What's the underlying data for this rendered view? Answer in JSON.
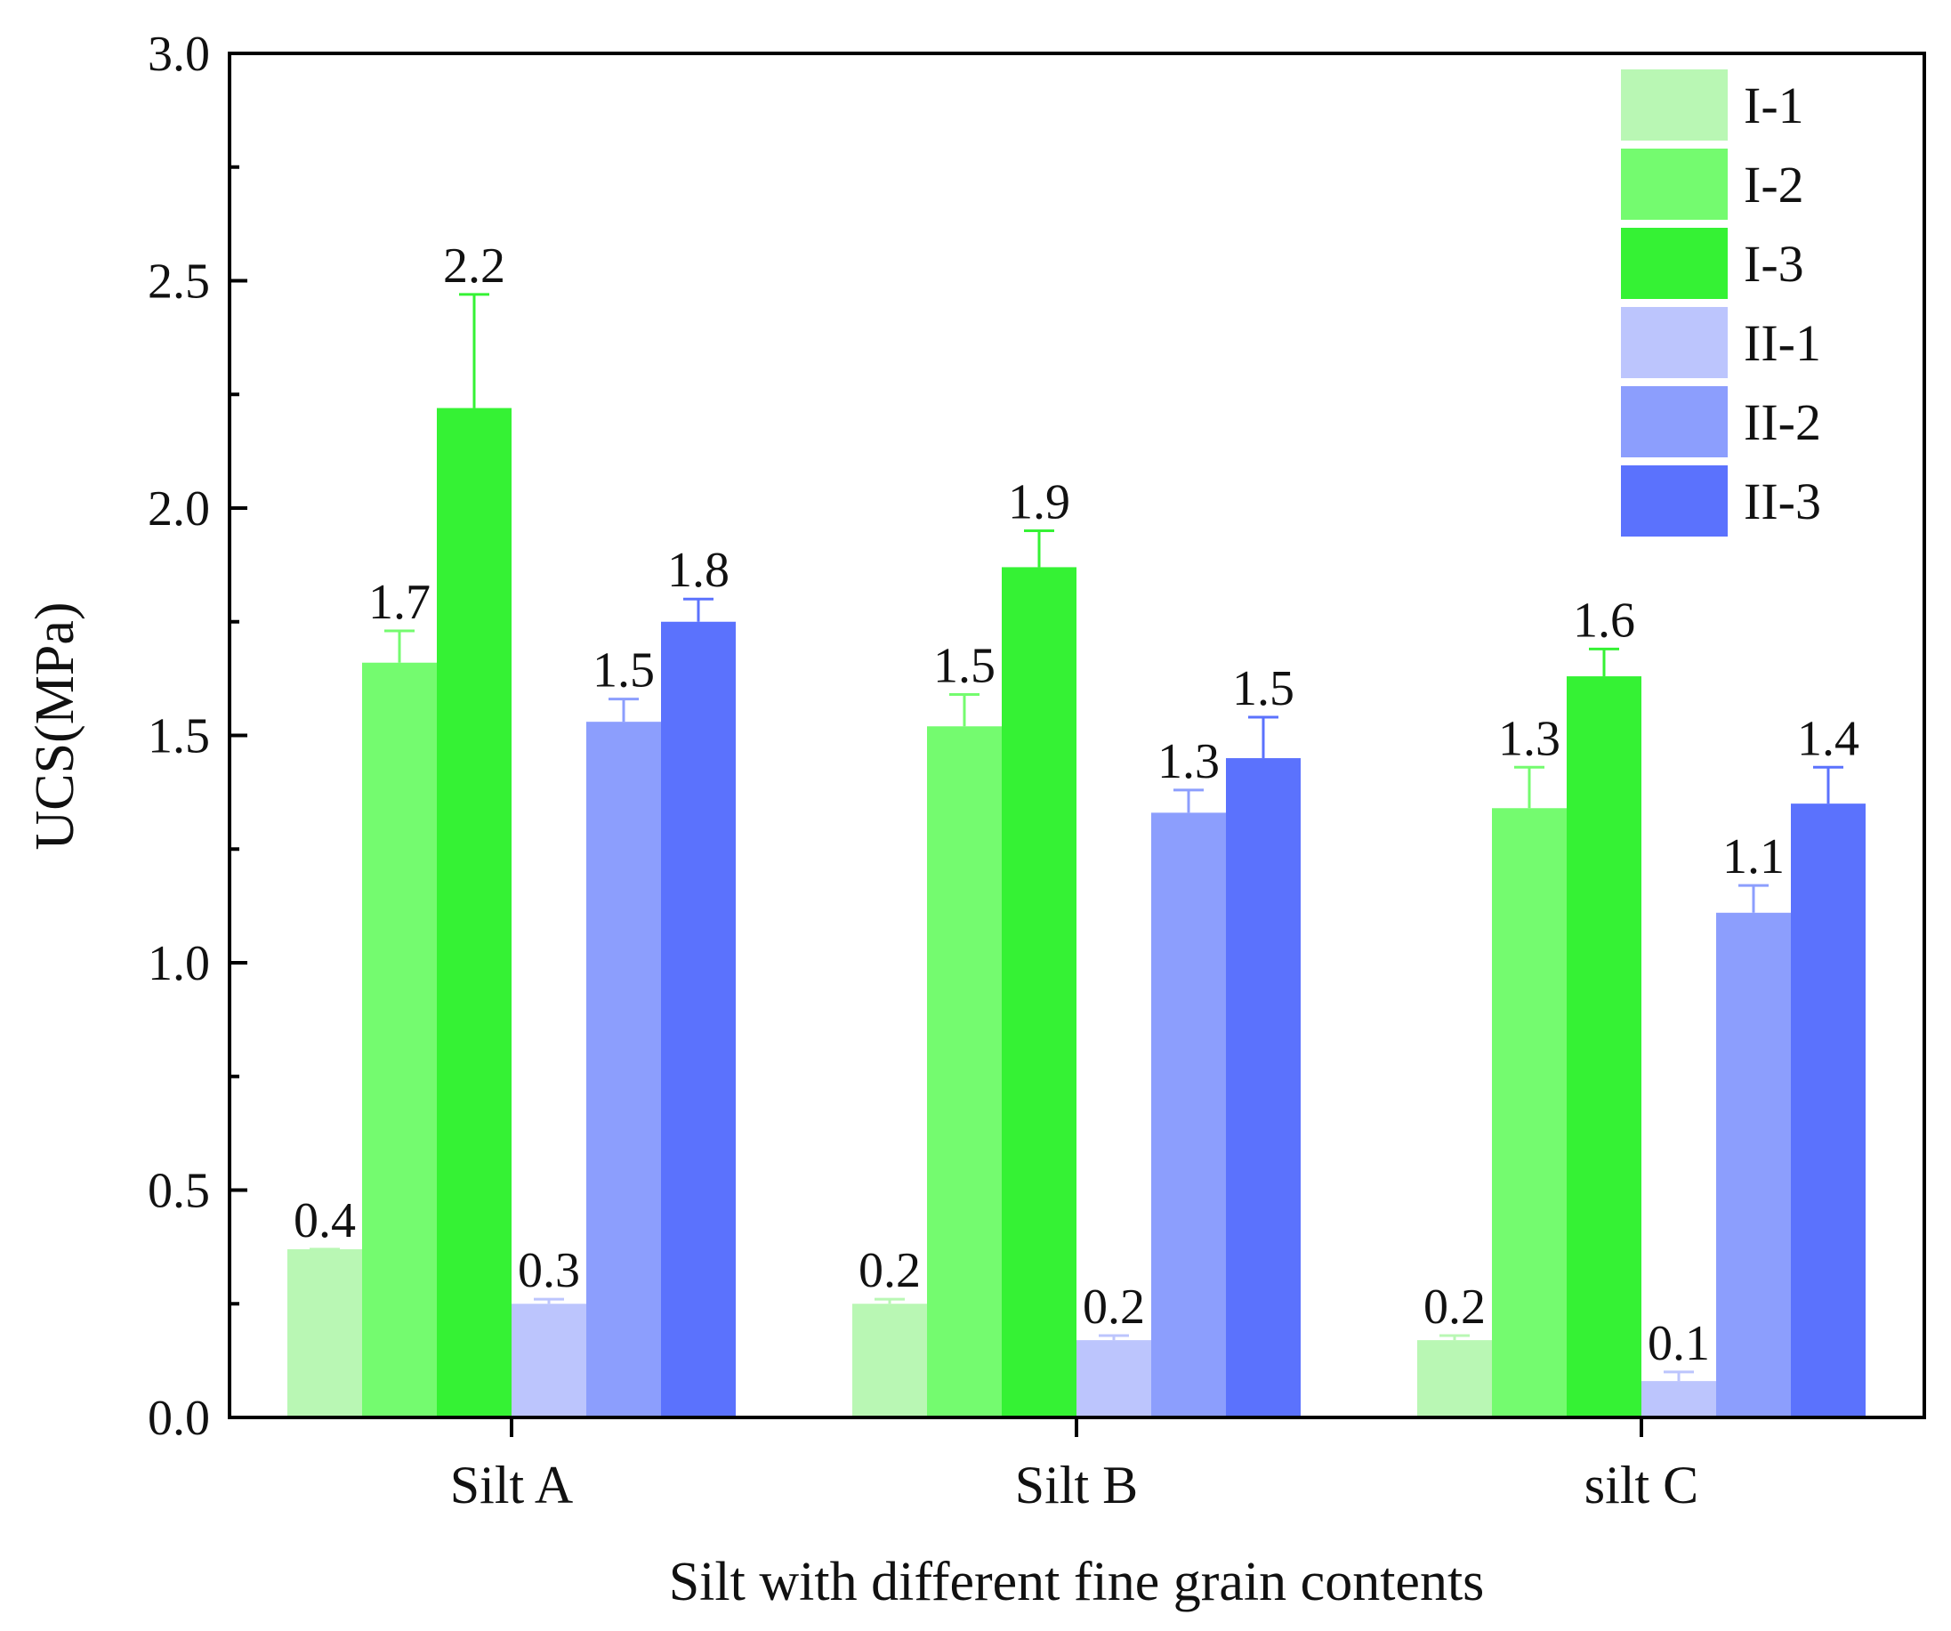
{
  "chart_data": {
    "type": "bar",
    "title": "",
    "xlabel": "Silt with different fine grain contents",
    "ylabel": "UCS(MPa)",
    "ylim": [
      0,
      3.0
    ],
    "yticks": [
      "0.0",
      "0.5",
      "1.0",
      "1.5",
      "2.0",
      "2.5",
      "3.0"
    ],
    "categories": [
      "Silt A",
      "Silt B",
      "silt C"
    ],
    "legend_position": "top-right",
    "series": [
      {
        "name": "I-1",
        "color": "#b9f7b4",
        "values": [
          0.37,
          0.25,
          0.17
        ],
        "errors": [
          0.0,
          0.01,
          0.01
        ],
        "labels": [
          "0.4",
          "0.2",
          "0.2"
        ]
      },
      {
        "name": "I-2",
        "color": "#74fb6f",
        "values": [
          1.66,
          1.52,
          1.34
        ],
        "errors": [
          0.07,
          0.07,
          0.09
        ],
        "labels": [
          "1.7",
          "1.5",
          "1.3"
        ]
      },
      {
        "name": "I-3",
        "color": "#35f234",
        "values": [
          2.22,
          1.87,
          1.63
        ],
        "errors": [
          0.25,
          0.08,
          0.06
        ],
        "labels": [
          "2.2",
          "1.9",
          "1.6"
        ]
      },
      {
        "name": "II-1",
        "color": "#bcc5fd",
        "values": [
          0.25,
          0.17,
          0.08
        ],
        "errors": [
          0.01,
          0.01,
          0.02
        ],
        "labels": [
          "0.3",
          "0.2",
          "0.1"
        ]
      },
      {
        "name": "II-2",
        "color": "#8c9efd",
        "values": [
          1.53,
          1.33,
          1.11
        ],
        "errors": [
          0.05,
          0.05,
          0.06
        ],
        "labels": [
          "1.5",
          "1.3",
          "1.1"
        ]
      },
      {
        "name": "II-3",
        "color": "#5b72fd",
        "values": [
          1.75,
          1.45,
          1.35
        ],
        "errors": [
          0.05,
          0.09,
          0.08
        ],
        "labels": [
          "1.8",
          "1.5",
          "1.4"
        ]
      }
    ]
  }
}
